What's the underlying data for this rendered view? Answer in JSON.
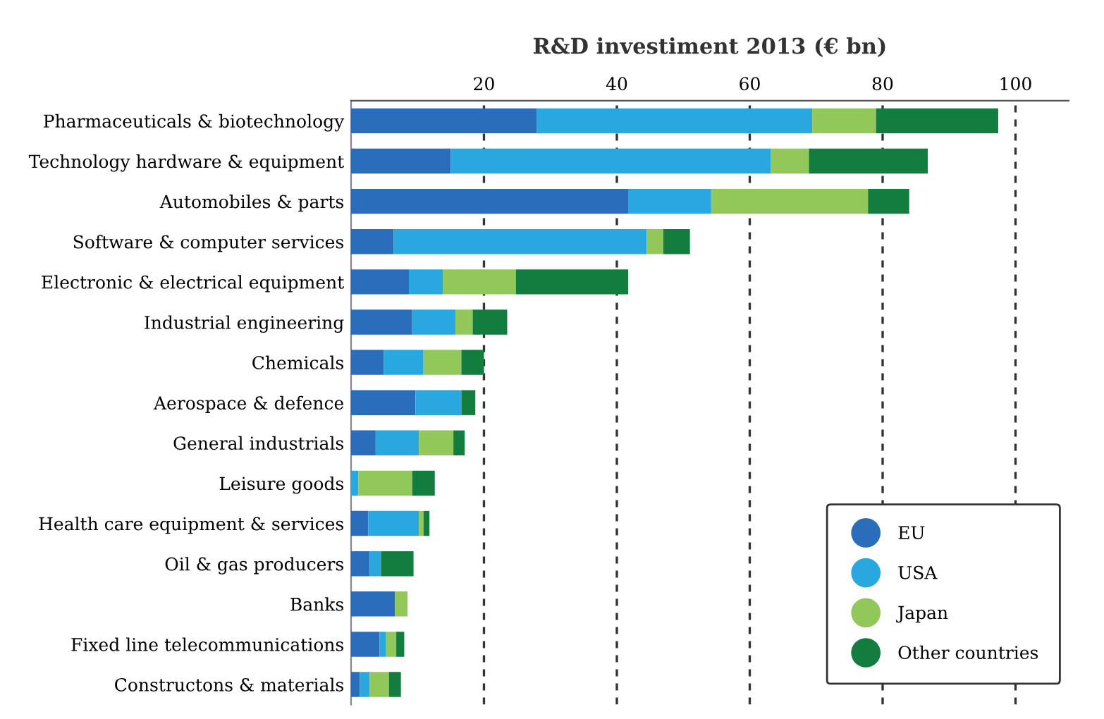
{
  "chart_data": {
    "type": "bar",
    "orientation": "horizontal",
    "stacked": true,
    "title": "R&D investiment 2013 (€ bn)",
    "categories": [
      "Pharmaceuticals & biotechnology",
      "Technology hardware & equipment",
      "Automobiles & parts",
      "Software & computer services",
      "Electronic & electrical equipment",
      "Industrial engineering",
      "Chemicals",
      "Aerospace & defence",
      "General industrials",
      "Leisure goods",
      "Health care equipment & services",
      "Oil & gas producers",
      "Banks",
      "Fixed line telecommunications",
      "Constructons & materials"
    ],
    "series": [
      {
        "name": "EU",
        "color": "#2a6ebb",
        "values": [
          27.9,
          15.0,
          41.7,
          6.4,
          8.7,
          9.2,
          4.9,
          9.7,
          3.7,
          0,
          2.6,
          2.8,
          6.6,
          4.3,
          1.3
        ]
      },
      {
        "name": "USA",
        "color": "#29a8e0",
        "values": [
          41.5,
          48.2,
          12.5,
          38.1,
          5.1,
          6.5,
          6.0,
          6.9,
          6.5,
          1.1,
          7.6,
          1.7,
          0,
          0.9,
          1.5
        ]
      },
      {
        "name": "Japan",
        "color": "#92c85a",
        "values": [
          9.6,
          5.7,
          23.6,
          2.5,
          11.0,
          2.6,
          5.7,
          0,
          5.2,
          8.1,
          0.7,
          0,
          1.9,
          1.6,
          2.9
        ]
      },
      {
        "name": "Other countries",
        "color": "#127d3f",
        "values": [
          18.4,
          17.9,
          6.2,
          4.0,
          16.9,
          5.2,
          3.4,
          2.1,
          1.7,
          3.4,
          0.9,
          4.9,
          0,
          1.2,
          1.8
        ]
      }
    ],
    "xlim": [
      0,
      108
    ],
    "xticks": [
      20,
      40,
      60,
      80,
      100
    ],
    "grid": "x",
    "legend": "bottom right"
  }
}
